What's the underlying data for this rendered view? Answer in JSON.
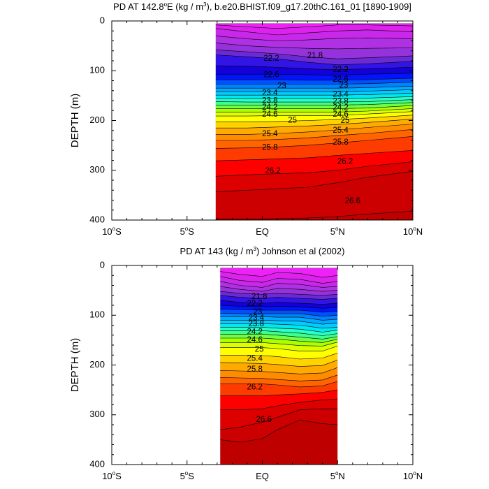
{
  "chart_data": [
    {
      "type": "contour",
      "title": "PD AT 142.8°E (kg / m3), b.e20.BHIST.f09_g17.20thC.161_01 [1890-1909]",
      "title_parts": {
        "pre": "PD AT 142.8",
        "deg_sup": "o",
        "mid": "E (kg / m",
        "unit_sup": "3",
        "post": "), b.e20.BHIST.f09_g17.20thC.161_01 [1890-1909]"
      },
      "ylabel": "DEPTH (m)",
      "xlim": [
        -10,
        10
      ],
      "ylim": [
        0,
        400
      ],
      "y_reversed": true,
      "x_ticks": [
        {
          "value": -10,
          "main": "10",
          "sup": "o",
          "suffix": "S"
        },
        {
          "value": -5,
          "main": "5",
          "sup": "o",
          "suffix": "S"
        },
        {
          "value": 0,
          "main": "EQ",
          "sup": "",
          "suffix": ""
        },
        {
          "value": 5,
          "main": "5",
          "sup": "o",
          "suffix": "N"
        },
        {
          "value": 10,
          "main": "10",
          "sup": "o",
          "suffix": "N"
        }
      ],
      "y_ticks": [
        "0",
        "100",
        "200",
        "300",
        "400"
      ],
      "data_xrange": [
        -3.1,
        10
      ],
      "top_depth": 5,
      "levels": [
        21.2,
        21.4,
        21.6,
        21.8,
        22.0,
        22.2,
        22.4,
        22.6,
        22.8,
        23.0,
        23.2,
        23.4,
        23.6,
        23.8,
        24.0,
        24.2,
        24.4,
        24.6,
        24.8,
        25.0,
        25.2,
        25.4,
        25.6,
        25.8,
        26.0,
        26.2,
        26.4,
        26.6,
        26.8
      ],
      "x": [
        -3.1,
        -1,
        1,
        3,
        5,
        7,
        10
      ],
      "isopycnal_depths": [
        [
          5,
          5,
          5,
          5,
          5,
          5,
          5
        ],
        [
          8,
          12,
          15,
          12,
          8,
          8,
          10
        ],
        [
          15,
          22,
          28,
          24,
          20,
          18,
          22
        ],
        [
          30,
          36,
          40,
          38,
          35,
          34,
          36
        ],
        [
          44,
          50,
          53,
          55,
          56,
          55,
          54
        ],
        [
          58,
          62,
          66,
          72,
          76,
          74,
          70
        ],
        [
          68,
          72,
          76,
          83,
          88,
          86,
          81
        ],
        [
          90,
          91,
          93,
          96,
          98,
          96,
          93
        ],
        [
          107,
          107,
          107,
          108,
          109,
          107,
          105
        ],
        [
          118,
          118,
          118,
          119,
          119,
          118,
          115
        ],
        [
          127,
          127,
          127,
          127,
          127,
          126,
          123
        ],
        [
          135,
          135,
          135,
          135,
          135,
          134,
          131
        ],
        [
          142,
          142,
          142,
          142,
          142,
          141,
          138
        ],
        [
          149,
          149,
          149,
          149,
          149,
          148,
          145
        ],
        [
          156,
          156,
          156,
          156,
          156,
          155,
          152
        ],
        [
          162,
          163,
          163,
          163,
          163,
          162,
          158
        ],
        [
          169,
          169,
          169,
          169,
          169,
          168,
          164
        ],
        [
          176,
          176,
          176,
          176,
          176,
          175,
          170
        ],
        [
          183,
          183,
          183,
          183,
          183,
          181,
          176
        ],
        [
          191,
          191,
          190,
          190,
          190,
          187,
          182
        ],
        [
          203,
          203,
          202,
          200,
          198,
          195,
          189
        ],
        [
          215,
          215,
          213,
          211,
          208,
          204,
          197
        ],
        [
          228,
          228,
          226,
          223,
          219,
          214,
          207
        ],
        [
          240,
          240,
          238,
          235,
          230,
          226,
          218
        ],
        [
          256,
          255,
          253,
          250,
          245,
          240,
          232
        ],
        [
          281,
          279,
          277,
          275,
          270,
          266,
          260
        ],
        [
          312,
          309,
          307,
          305,
          300,
          292,
          283
        ],
        [
          343,
          340,
          337,
          334,
          325,
          314,
          302
        ],
        [
          398,
          398,
          397,
          396,
          393,
          388,
          382
        ]
      ],
      "labels": [
        {
          "text": "21.8",
          "x": 3.5,
          "y": 70
        },
        {
          "text": "22.2",
          "x": 0.6,
          "y": 76
        },
        {
          "text": "22.2",
          "x": 5.2,
          "y": 98
        },
        {
          "text": "22.6",
          "x": 0.6,
          "y": 109
        },
        {
          "text": "22.6",
          "x": 5.2,
          "y": 118
        },
        {
          "text": "23",
          "x": 1.3,
          "y": 131
        },
        {
          "text": "23",
          "x": 5.4,
          "y": 130
        },
        {
          "text": "23.4",
          "x": 0.5,
          "y": 145
        },
        {
          "text": "23.4",
          "x": 5.2,
          "y": 148
        },
        {
          "text": "23.8",
          "x": 0.5,
          "y": 161
        },
        {
          "text": "23.8",
          "x": 5.2,
          "y": 162
        },
        {
          "text": "24.2",
          "x": 0.5,
          "y": 174
        },
        {
          "text": "24.2",
          "x": 5.2,
          "y": 175
        },
        {
          "text": "24.6",
          "x": 0.5,
          "y": 188
        },
        {
          "text": "24.6",
          "x": 5.2,
          "y": 188
        },
        {
          "text": "25",
          "x": 2.0,
          "y": 200
        },
        {
          "text": "25",
          "x": 5.5,
          "y": 201
        },
        {
          "text": "25.4",
          "x": 0.5,
          "y": 227
        },
        {
          "text": "25.4",
          "x": 5.2,
          "y": 220
        },
        {
          "text": "25.8",
          "x": 0.5,
          "y": 255
        },
        {
          "text": "25.8",
          "x": 5.2,
          "y": 244
        },
        {
          "text": "26.2",
          "x": 0.7,
          "y": 302
        },
        {
          "text": "26.2",
          "x": 5.5,
          "y": 283
        },
        {
          "text": "26.6",
          "x": 6.0,
          "y": 362
        }
      ]
    },
    {
      "type": "contour",
      "title": "PD AT 143 (kg / m3) Johnson et al (2002)",
      "title_parts": {
        "pre": "PD AT 143 (kg / m",
        "deg_sup": "",
        "mid": "",
        "unit_sup": "3",
        "post": ") Johnson et al (2002)"
      },
      "ylabel": "DEPTH (m)",
      "xlim": [
        -10,
        10
      ],
      "ylim": [
        0,
        400
      ],
      "y_reversed": true,
      "x_ticks": [
        {
          "value": -10,
          "main": "10",
          "sup": "o",
          "suffix": "S"
        },
        {
          "value": -5,
          "main": "5",
          "sup": "o",
          "suffix": "S"
        },
        {
          "value": 0,
          "main": "EQ",
          "sup": "",
          "suffix": ""
        },
        {
          "value": 5,
          "main": "5",
          "sup": "o",
          "suffix": "N"
        },
        {
          "value": 10,
          "main": "10",
          "sup": "o",
          "suffix": "N"
        }
      ],
      "y_ticks": [
        "0",
        "100",
        "200",
        "300",
        "400"
      ],
      "data_xrange": [
        -2.8,
        5
      ],
      "top_depth": 5,
      "levels": [
        21.2,
        21.4,
        21.6,
        21.8,
        22.0,
        22.2,
        22.4,
        22.6,
        22.8,
        23.0,
        23.2,
        23.4,
        23.6,
        23.8,
        24.0,
        24.2,
        24.4,
        24.6,
        24.8,
        25.0,
        25.2,
        25.4,
        25.6,
        25.8,
        26.0,
        26.2,
        26.4,
        26.6,
        26.8
      ],
      "x": [
        -2.8,
        -1.5,
        0,
        1,
        2.5,
        4,
        5
      ],
      "isopycnal_depths": [
        [
          5,
          5,
          5,
          5,
          5,
          5,
          5
        ],
        [
          12,
          18,
          22,
          14,
          16,
          24,
          20
        ],
        [
          22,
          30,
          34,
          26,
          28,
          36,
          32
        ],
        [
          32,
          40,
          44,
          36,
          38,
          44,
          42
        ],
        [
          42,
          48,
          52,
          46,
          48,
          52,
          50
        ],
        [
          52,
          56,
          58,
          56,
          58,
          60,
          58
        ],
        [
          60,
          64,
          66,
          64,
          66,
          68,
          66
        ],
        [
          70,
          74,
          76,
          74,
          76,
          78,
          76
        ],
        [
          80,
          82,
          83,
          82,
          83,
          86,
          84
        ],
        [
          88,
          89,
          90,
          90,
          90,
          94,
          92
        ],
        [
          96,
          97,
          97,
          97,
          97,
          102,
          100
        ],
        [
          103,
          103,
          103,
          104,
          104,
          110,
          108
        ],
        [
          110,
          110,
          110,
          111,
          112,
          118,
          116
        ],
        [
          117,
          117,
          117,
          118,
          120,
          126,
          124
        ],
        [
          124,
          124,
          124,
          126,
          128,
          134,
          130
        ],
        [
          131,
          131,
          131,
          133,
          136,
          141,
          137
        ],
        [
          138,
          138,
          138,
          140,
          144,
          148,
          143
        ],
        [
          146,
          146,
          146,
          148,
          152,
          155,
          148
        ],
        [
          155,
          155,
          155,
          157,
          161,
          162,
          154
        ],
        [
          165,
          165,
          165,
          167,
          172,
          172,
          162
        ],
        [
          180,
          180,
          181,
          183,
          188,
          186,
          176
        ],
        [
          195,
          196,
          197,
          199,
          203,
          201,
          190
        ],
        [
          211,
          212,
          213,
          215,
          218,
          216,
          205
        ],
        [
          225,
          226,
          227,
          229,
          232,
          230,
          220
        ],
        [
          238,
          238,
          238,
          240,
          244,
          242,
          233
        ],
        [
          262,
          262,
          262,
          260,
          258,
          255,
          250
        ],
        [
          290,
          290,
          288,
          282,
          275,
          270,
          268
        ],
        [
          330,
          325,
          315,
          305,
          290,
          288,
          288
        ],
        [
          350,
          355,
          348,
          330,
          310,
          318,
          320
        ]
      ],
      "labels": [
        {
          "text": "21.8",
          "x": -0.2,
          "y": 63
        },
        {
          "text": "22.2",
          "x": -0.5,
          "y": 77
        },
        {
          "text": "23",
          "x": -0.3,
          "y": 94
        },
        {
          "text": "23.4",
          "x": -0.4,
          "y": 106
        },
        {
          "text": "23.8",
          "x": -0.4,
          "y": 118
        },
        {
          "text": "24.2",
          "x": -0.5,
          "y": 134
        },
        {
          "text": "24.6",
          "x": -0.5,
          "y": 150
        },
        {
          "text": "25",
          "x": -0.2,
          "y": 169
        },
        {
          "text": "25.4",
          "x": -0.5,
          "y": 187
        },
        {
          "text": "25.8",
          "x": -0.5,
          "y": 209
        },
        {
          "text": "26.2",
          "x": -0.5,
          "y": 245
        },
        {
          "text": "26.6",
          "x": 0.1,
          "y": 310
        }
      ]
    }
  ]
}
